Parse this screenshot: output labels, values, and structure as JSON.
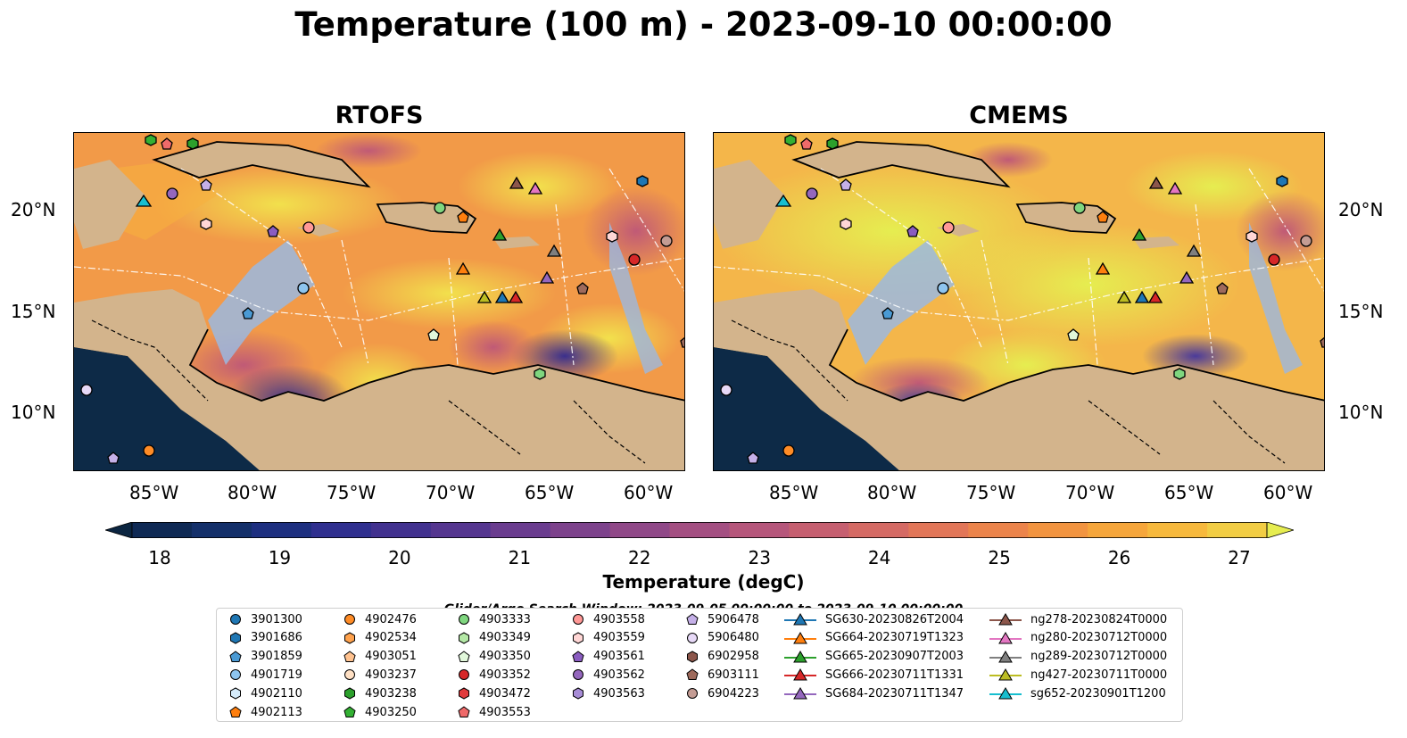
{
  "figure": {
    "title": "Temperature (100 m) - 2023-09-10 00:00:00"
  },
  "panels": [
    {
      "title": "RTOFS",
      "style": "rtofs"
    },
    {
      "title": "CMEMS",
      "style": "cmems"
    }
  ],
  "axes": {
    "x_ticks": [
      "85°W",
      "80°W",
      "75°W",
      "70°W",
      "65°W",
      "60°W"
    ],
    "y_ticks": [
      "20°N",
      "15°N",
      "10°N"
    ]
  },
  "colorbar": {
    "label": "Temperature (degC)",
    "ticks": [
      "18",
      "19",
      "20",
      "21",
      "22",
      "23",
      "24",
      "25",
      "26",
      "27"
    ],
    "colors": [
      "#0b2540",
      "#0f2a55",
      "#14306a",
      "#1d2f80",
      "#2f2f8f",
      "#41318f",
      "#553690",
      "#6a3c8f",
      "#7d428c",
      "#904888",
      "#a44f82",
      "#b6567b",
      "#c65f70",
      "#d56a64",
      "#e27658",
      "#ec844b",
      "#f29440",
      "#f6a63b",
      "#f7b93d",
      "#f2cd44",
      "#e6ed50"
    ]
  },
  "search_window": "Glider/Argo Search Window: 2023-09-05 00:00:00 to 2023-09-10 00:00:00",
  "legend": [
    {
      "label": "3901300",
      "marker": "circle",
      "color": "#1f77b4"
    },
    {
      "label": "3901686",
      "marker": "hexagon",
      "color": "#1f77b4"
    },
    {
      "label": "3901859",
      "marker": "pentagon",
      "color": "#4a9ad4"
    },
    {
      "label": "4901719",
      "marker": "circle",
      "color": "#8ec5ef"
    },
    {
      "label": "4902110",
      "marker": "hexagon",
      "color": "#d6ecfb"
    },
    {
      "label": "4902113",
      "marker": "pentagon",
      "color": "#ff7f0e"
    },
    {
      "label": "4902476",
      "marker": "circle",
      "color": "#ff8c26"
    },
    {
      "label": "4902534",
      "marker": "hexagon",
      "color": "#ffa24d"
    },
    {
      "label": "4903051",
      "marker": "pentagon",
      "color": "#ffc28f"
    },
    {
      "label": "4903237",
      "marker": "circle",
      "color": "#ffe0c4"
    },
    {
      "label": "4903238",
      "marker": "hexagon",
      "color": "#2ca02c"
    },
    {
      "label": "4903250",
      "marker": "pentagon",
      "color": "#33b033"
    },
    {
      "label": "4903333",
      "marker": "circle",
      "color": "#7fd67f"
    },
    {
      "label": "4903349",
      "marker": "hexagon",
      "color": "#b4e8a6"
    },
    {
      "label": "4903350",
      "marker": "pentagon",
      "color": "#e1f7da"
    },
    {
      "label": "4903352",
      "marker": "circle",
      "color": "#d62728"
    },
    {
      "label": "4903472",
      "marker": "hexagon",
      "color": "#e03a3c"
    },
    {
      "label": "4903553",
      "marker": "pentagon",
      "color": "#ef6a6a"
    },
    {
      "label": "4903558",
      "marker": "circle",
      "color": "#ff9896"
    },
    {
      "label": "4903559",
      "marker": "hexagon",
      "color": "#ffd6d5"
    },
    {
      "label": "4903561",
      "marker": "pentagon",
      "color": "#8a5cc0"
    },
    {
      "label": "4903562",
      "marker": "circle",
      "color": "#9467bd"
    },
    {
      "label": "4903563",
      "marker": "hexagon",
      "color": "#a78cd6"
    },
    {
      "label": "5906478",
      "marker": "pentagon",
      "color": "#c5b0e8"
    },
    {
      "label": "5906480",
      "marker": "circle",
      "color": "#e7d9f7"
    },
    {
      "label": "6902958",
      "marker": "hexagon",
      "color": "#8c564b"
    },
    {
      "label": "6903111",
      "marker": "pentagon",
      "color": "#9e6a5c"
    },
    {
      "label": "6904223",
      "marker": "circle",
      "color": "#c49c94"
    },
    {
      "label": "SG630-20230826T2004",
      "marker": "triangle",
      "color": "#1f77b4"
    },
    {
      "label": "SG664-20230719T1323",
      "marker": "triangle",
      "color": "#ff7f0e"
    },
    {
      "label": "SG665-20230907T2003",
      "marker": "triangle",
      "color": "#2ca02c"
    },
    {
      "label": "SG666-20230711T1331",
      "marker": "triangle",
      "color": "#d62728"
    },
    {
      "label": "SG684-20230711T1347",
      "marker": "triangle",
      "color": "#9467bd"
    },
    {
      "label": "ng278-20230824T0000",
      "marker": "triangle",
      "color": "#8c564b"
    },
    {
      "label": "ng280-20230712T0000",
      "marker": "triangle",
      "color": "#e377c2"
    },
    {
      "label": "ng289-20230712T0000",
      "marker": "triangle",
      "color": "#7f7f7f"
    },
    {
      "label": "ng427-20230711T0000",
      "marker": "triangle",
      "color": "#bcbd22"
    },
    {
      "label": "sg652-20230901T1200",
      "marker": "triangle",
      "color": "#17becf"
    }
  ]
}
